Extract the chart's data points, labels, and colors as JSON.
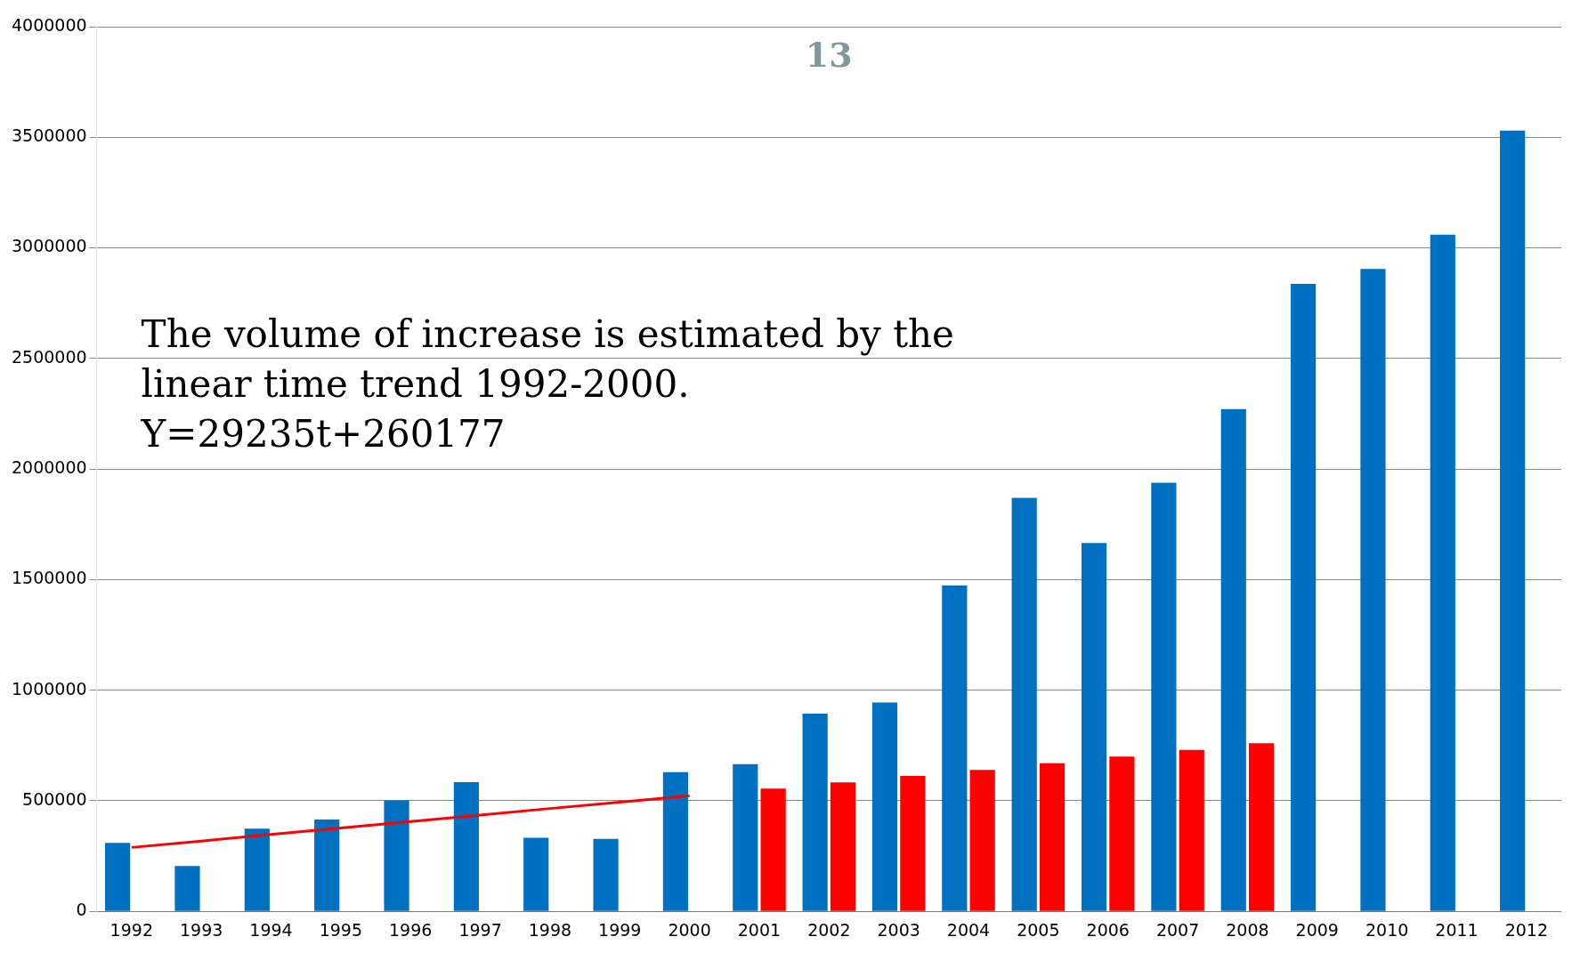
{
  "chart_data": {
    "type": "bar",
    "title": "13",
    "categories": [
      "1992",
      "1993",
      "1994",
      "1995",
      "1996",
      "1997",
      "1998",
      "1999",
      "2000",
      "2001",
      "2002",
      "2003",
      "2004",
      "2005",
      "2006",
      "2007",
      "2008",
      "2009",
      "2010",
      "2011",
      "2012"
    ],
    "series": [
      {
        "color": "#0070c0",
        "values": [
          310000,
          205000,
          374000,
          415000,
          502000,
          584000,
          333000,
          328000,
          629000,
          666000,
          894000,
          944000,
          1473000,
          1870000,
          1665000,
          1938000,
          2271000,
          2837000,
          2905000,
          3060000,
          3530000
        ]
      },
      {
        "color": "#ff0000",
        "values": [
          null,
          null,
          null,
          null,
          null,
          null,
          null,
          null,
          null,
          555000,
          583000,
          612000,
          640000,
          670000,
          700000,
          730000,
          760000,
          null,
          null,
          null,
          null
        ]
      },
      {
        "type": "line",
        "color": "#ff0000",
        "values": [
          289000,
          318000,
          348000,
          377000,
          406000,
          435000,
          465000,
          494000,
          523000,
          null,
          null,
          null,
          null,
          null,
          null,
          null,
          null,
          null,
          null,
          null,
          null
        ]
      }
    ],
    "ylim": [
      0,
      4000000
    ],
    "yticks": [
      0,
      500000,
      1000000,
      1500000,
      2000000,
      2500000,
      3000000,
      3500000,
      4000000
    ],
    "grid": "y",
    "legend": false,
    "marker": "none",
    "annotations": [
      "The volume of increase is estimated by the linear time trend 1992-2000.",
      "Y=29235t+260177"
    ]
  }
}
